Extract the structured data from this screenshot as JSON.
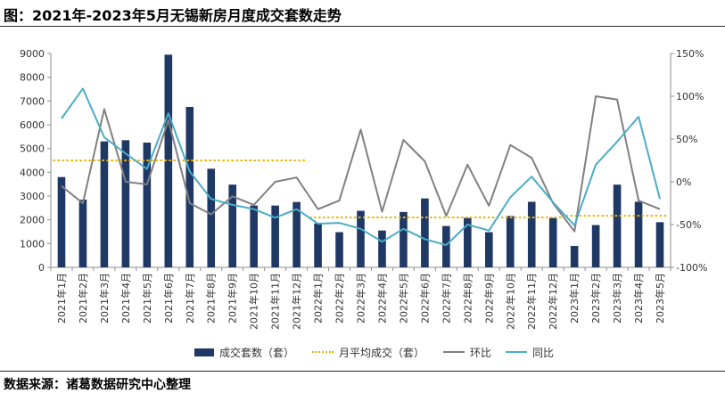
{
  "title": "图：2021年-2023年5月无锡新房月度成交套数走势",
  "source": "数据来源：诸葛数据研究中心整理",
  "colors": {
    "bar": "#1f3864",
    "avg": "#f2b400",
    "mom": "#808080",
    "yoy": "#4bacc6"
  },
  "legend": {
    "bar": "成交套数（套）",
    "avg": "月平均成交（套）",
    "mom": "环比",
    "yoy": "同比"
  },
  "chart_data": {
    "type": "bar",
    "categories": [
      "2021年1月",
      "2021年2月",
      "2021年3月",
      "2021年4月",
      "2021年5月",
      "2021年6月",
      "2021年7月",
      "2021年8月",
      "2021年9月",
      "2021年10月",
      "2021年11月",
      "2021年12月",
      "2022年1月",
      "2022年2月",
      "2022年3月",
      "2022年4月",
      "2022年5月",
      "2022年6月",
      "2022年7月",
      "2022年8月",
      "2022年9月",
      "2022年10月",
      "2022年11月",
      "2022年12月",
      "2023年1月",
      "2023年2月",
      "2023年3月",
      "2023年4月",
      "2023年5月"
    ],
    "left_axis": {
      "min": 0,
      "max": 9000,
      "step": 1000,
      "ticks": [
        "0",
        "1000",
        "2000",
        "3000",
        "4000",
        "5000",
        "6000",
        "7000",
        "8000",
        "9000"
      ]
    },
    "right_axis": {
      "min": -100,
      "max": 150,
      "step": 50,
      "ticks": [
        "-100%",
        "-50%",
        "0%",
        "50%",
        "100%",
        "150%"
      ]
    },
    "series": [
      {
        "name": "成交套数（套）",
        "type": "bar",
        "axis": "left",
        "values": [
          3800,
          2850,
          5300,
          5350,
          5250,
          8950,
          6750,
          4150,
          3480,
          2600,
          2600,
          2750,
          1850,
          1480,
          2380,
          1550,
          2330,
          2900,
          1740,
          2080,
          1480,
          2160,
          2760,
          2080,
          900,
          1780,
          3480,
          2760,
          1900
        ]
      },
      {
        "name": "月平均成交（套）",
        "type": "dashed",
        "axis": "left",
        "segments": [
          {
            "from": 0,
            "to": 11,
            "value": 4500
          },
          {
            "from": 12,
            "to": 23,
            "value": 2100
          },
          {
            "from": 24,
            "to": 28,
            "value": 2170
          }
        ]
      },
      {
        "name": "环比",
        "type": "line",
        "axis": "right",
        "values": [
          -5,
          -25,
          85,
          0,
          -3,
          72,
          -25,
          -38,
          -17,
          -27,
          0,
          5,
          -32,
          -22,
          61,
          -35,
          49,
          24,
          -40,
          20,
          -28,
          43,
          28,
          -25,
          -58,
          100,
          96,
          -22,
          -32
        ]
      },
      {
        "name": "同比",
        "type": "line",
        "axis": "right",
        "values": [
          74,
          109,
          52,
          33,
          15,
          80,
          12,
          -20,
          -27,
          -32,
          -42,
          -32,
          -49,
          -48,
          -55,
          -70,
          -55,
          -67,
          -74,
          -50,
          -57,
          -18,
          6,
          -24,
          -51,
          20,
          47,
          76,
          -20
        ]
      }
    ]
  }
}
